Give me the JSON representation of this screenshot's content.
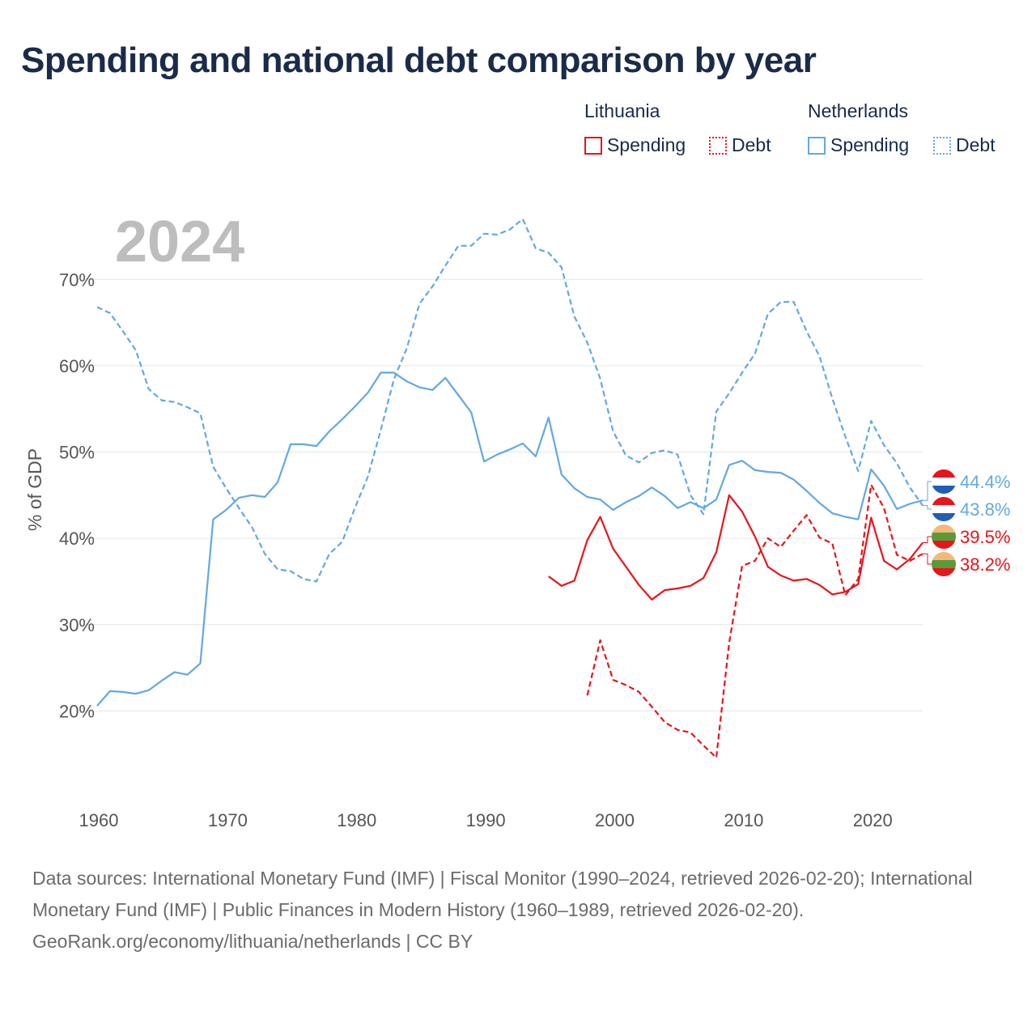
{
  "title": "Spending and national debt comparison by year",
  "legend": {
    "groups": [
      {
        "country": "Lithuania",
        "items": [
          {
            "label": "Spending",
            "style": "solid",
            "color": "#e8141b"
          },
          {
            "label": "Debt",
            "style": "dotted",
            "color": "#e8141b"
          }
        ]
      },
      {
        "country": "Netherlands",
        "items": [
          {
            "label": "Spending",
            "style": "solid",
            "color": "#62a8e5"
          },
          {
            "label": "Debt",
            "style": "dotted",
            "color": "#62a8e5"
          }
        ]
      }
    ]
  },
  "chart_data": {
    "type": "line",
    "year_label": "2024",
    "ylabel": "% of GDP",
    "xlim": [
      1960,
      2025
    ],
    "ylim": [
      10,
      78
    ],
    "x_ticks": [
      1960,
      1970,
      1980,
      1990,
      2000,
      2010,
      2020
    ],
    "y_ticks": [
      20,
      30,
      40,
      50,
      60,
      70
    ],
    "y_tick_labels": [
      "20%",
      "30%",
      "40%",
      "50%",
      "60%",
      "70%"
    ],
    "series": [
      {
        "name": "Netherlands Spending",
        "country": "Netherlands",
        "metric": "Spending",
        "color": "#62a8e5",
        "dash": "solid",
        "x": [
          1960,
          1961,
          1962,
          1963,
          1964,
          1965,
          1966,
          1967,
          1968,
          1969,
          1970,
          1971,
          1972,
          1973,
          1974,
          1975,
          1976,
          1977,
          1978,
          1979,
          1980,
          1981,
          1982,
          1983,
          1984,
          1985,
          1986,
          1987,
          1988,
          1989,
          1990,
          1991,
          1992,
          1993,
          1994,
          1995,
          1996,
          1997,
          1998,
          1999,
          2000,
          2001,
          2002,
          2003,
          2004,
          2005,
          2006,
          2007,
          2008,
          2009,
          2010,
          2011,
          2012,
          2013,
          2014,
          2015,
          2016,
          2017,
          2018,
          2019,
          2020,
          2021,
          2022,
          2023,
          2024
        ],
        "values": [
          20.6,
          22.3,
          22.2,
          22.0,
          22.4,
          23.5,
          24.5,
          24.2,
          25.5,
          42.2,
          43.3,
          44.7,
          45.0,
          44.8,
          46.5,
          50.9,
          50.9,
          50.7,
          52.4,
          53.8,
          55.3,
          56.9,
          59.2,
          59.2,
          58.2,
          57.5,
          57.2,
          58.6,
          56.6,
          54.6,
          48.9,
          49.7,
          50.3,
          51.0,
          49.5,
          54.0,
          47.4,
          45.8,
          44.8,
          44.5,
          43.3,
          44.2,
          44.9,
          45.9,
          44.9,
          43.5,
          44.2,
          43.5,
          44.5,
          48.5,
          49.0,
          47.9,
          47.7,
          47.6,
          46.8,
          45.5,
          44.1,
          42.9,
          42.5,
          42.2,
          48.0,
          46.1,
          43.4,
          44.0,
          44.4
        ],
        "end_label": "44.4%"
      },
      {
        "name": "Netherlands Debt",
        "country": "Netherlands",
        "metric": "Debt",
        "color": "#62a8e5",
        "dash": "dashed",
        "x": [
          1960,
          1961,
          1962,
          1963,
          1964,
          1965,
          1966,
          1967,
          1968,
          1969,
          1970,
          1971,
          1972,
          1973,
          1974,
          1975,
          1976,
          1977,
          1978,
          1979,
          1980,
          1981,
          1982,
          1983,
          1984,
          1985,
          1986,
          1987,
          1988,
          1989,
          1990,
          1991,
          1992,
          1993,
          1994,
          1995,
          1996,
          1997,
          1998,
          1999,
          2000,
          2001,
          2002,
          2003,
          2004,
          2005,
          2006,
          2007,
          2008,
          2009,
          2010,
          2011,
          2012,
          2013,
          2014,
          2015,
          2016,
          2017,
          2018,
          2019,
          2020,
          2021,
          2022,
          2023,
          2024
        ],
        "values": [
          66.8,
          66.1,
          64.0,
          61.8,
          57.3,
          56.0,
          55.8,
          55.2,
          54.5,
          48.3,
          45.8,
          43.5,
          41.3,
          38.2,
          36.4,
          36.2,
          35.3,
          35.0,
          38.2,
          39.6,
          43.6,
          47.2,
          52.6,
          58.4,
          62.0,
          67.2,
          69.2,
          71.6,
          73.9,
          73.9,
          75.3,
          75.2,
          75.8,
          77.0,
          73.6,
          73.1,
          71.4,
          65.7,
          62.7,
          58.5,
          52.4,
          49.6,
          48.8,
          49.9,
          50.2,
          49.7,
          45.0,
          42.8,
          54.7,
          56.8,
          59.2,
          61.4,
          66.0,
          67.4,
          67.4,
          64.0,
          61.1,
          56.2,
          51.8,
          47.8,
          53.6,
          50.8,
          48.7,
          45.9,
          43.8
        ],
        "end_label": "43.8%"
      },
      {
        "name": "Lithuania Spending",
        "country": "Lithuania",
        "metric": "Spending",
        "color": "#e8141b",
        "dash": "solid",
        "x": [
          1995,
          1996,
          1997,
          1998,
          1999,
          2000,
          2001,
          2002,
          2003,
          2004,
          2005,
          2006,
          2007,
          2008,
          2009,
          2010,
          2011,
          2012,
          2013,
          2014,
          2015,
          2016,
          2017,
          2018,
          2019,
          2020,
          2021,
          2022,
          2023,
          2024
        ],
        "values": [
          35.6,
          34.5,
          35.1,
          39.8,
          42.5,
          38.8,
          36.7,
          34.6,
          32.9,
          34.0,
          34.2,
          34.5,
          35.4,
          38.4,
          45.0,
          43.1,
          40.2,
          36.7,
          35.7,
          35.1,
          35.3,
          34.6,
          33.5,
          33.8,
          34.7,
          42.4,
          37.4,
          36.4,
          37.6,
          39.5
        ],
        "end_label": "39.5%"
      },
      {
        "name": "Lithuania Debt",
        "country": "Lithuania",
        "metric": "Debt",
        "color": "#e8141b",
        "dash": "dashed",
        "x": [
          1998,
          1999,
          2000,
          2001,
          2002,
          2003,
          2004,
          2005,
          2006,
          2007,
          2008,
          2009,
          2010,
          2011,
          2012,
          2013,
          2014,
          2015,
          2016,
          2017,
          2018,
          2019,
          2020,
          2021,
          2022,
          2023,
          2024
        ],
        "values": [
          21.8,
          28.2,
          23.6,
          23.0,
          22.2,
          20.5,
          18.7,
          17.8,
          17.5,
          16.0,
          14.6,
          27.9,
          36.8,
          37.4,
          40.0,
          39.0,
          40.9,
          42.7,
          40.1,
          39.4,
          33.4,
          35.3,
          46.2,
          43.5,
          38.1,
          37.4,
          38.2
        ],
        "end_label": "38.2%"
      }
    ]
  },
  "source": {
    "line1": "Data sources: International Monetary Fund (IMF) | Fiscal Monitor (1990–2024, retrieved 2026-02-20); International Monetary Fund (IMF) | Public Finances in Modern History (1960–1989, retrieved 2026-02-20).",
    "line2": "GeoRank.org/economy/lithuania/netherlands | CC BY"
  }
}
